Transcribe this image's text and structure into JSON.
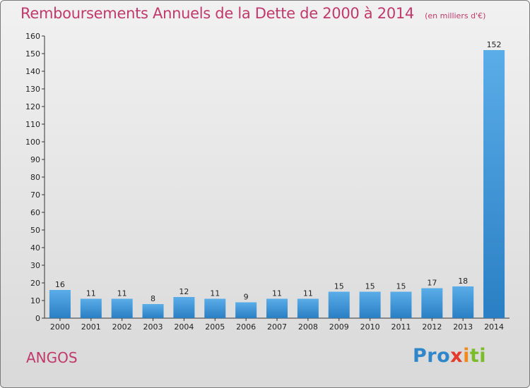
{
  "header": {
    "title": "Remboursements Annuels de la Dette de 2000 à 2014",
    "subtitle": "(en milliers d'€)"
  },
  "commune": "ANGOS",
  "logo": {
    "text": "Proxiti",
    "colors": [
      "#2f86c8",
      "#f08a1c",
      "#e33a2b",
      "#7cbc2a"
    ]
  },
  "chart_data": {
    "type": "bar",
    "title": "Remboursements Annuels de la Dette de 2000 à 2014",
    "subtitle": "(en milliers d'€)",
    "categories": [
      "2000",
      "2001",
      "2002",
      "2003",
      "2004",
      "2005",
      "2006",
      "2007",
      "2008",
      "2009",
      "2010",
      "2011",
      "2012",
      "2013",
      "2014"
    ],
    "values": [
      16,
      11,
      11,
      8,
      12,
      11,
      9,
      11,
      11,
      15,
      15,
      15,
      17,
      18,
      152
    ],
    "ylim": [
      0,
      160
    ],
    "yticks": [
      0,
      10,
      20,
      30,
      40,
      50,
      60,
      70,
      80,
      90,
      100,
      110,
      120,
      130,
      140,
      150,
      160
    ],
    "grid": false,
    "bar_color": "#3f96db",
    "data_labels": true
  }
}
